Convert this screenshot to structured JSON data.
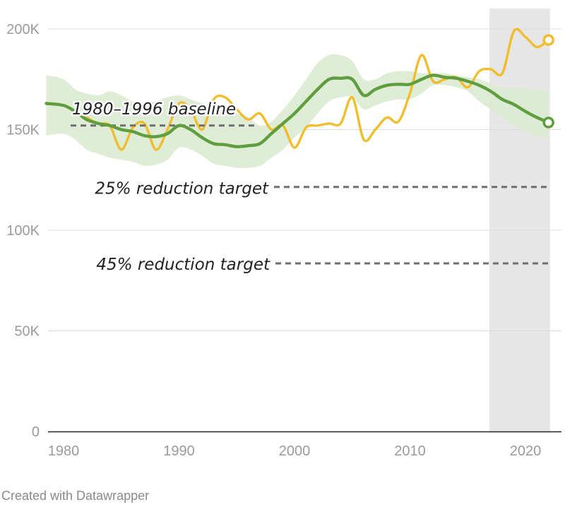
{
  "chart_data": {
    "type": "line",
    "x_ticks": [
      "1980",
      "1990",
      "2000",
      "2010",
      "2020"
    ],
    "y_ticks": [
      "0",
      "50K",
      "100K",
      "150K",
      "200K"
    ],
    "ylim": [
      0,
      200000
    ],
    "xlim": [
      1978.5,
      2022.6
    ],
    "grid": true,
    "highlight_band": {
      "from": 2017,
      "to": 2022,
      "color": "#e6e6e6"
    },
    "series": [
      {
        "color": "#f0bd2e",
        "x": [
          1982,
          1983,
          1984,
          1985,
          1986,
          1987,
          1988,
          1989,
          1990,
          1991,
          1992,
          1993,
          1994,
          1995,
          1996,
          1997,
          1998,
          1999,
          2000,
          2001,
          2002,
          2003,
          2004,
          2005,
          2006,
          2007,
          2008,
          2009,
          2010,
          2011,
          2012,
          2013,
          2014,
          2015,
          2016,
          2017,
          2018,
          2019,
          2020,
          2021,
          2022
        ],
        "values": [
          156000,
          153000,
          152000,
          140000,
          151000,
          153000,
          140000,
          150000,
          163000,
          160000,
          150000,
          165000,
          166000,
          160000,
          155000,
          158000,
          150000,
          152000,
          141000,
          151000,
          152000,
          153000,
          153000,
          166000,
          145000,
          150000,
          156000,
          154000,
          168000,
          187000,
          174000,
          175000,
          176000,
          171000,
          179000,
          180000,
          178000,
          199000,
          196000,
          191000,
          194500
        ]
      },
      {
        "color": "#5f9e3f",
        "x": [
          1978.5,
          1980,
          1981,
          1982,
          1983,
          1984,
          1985,
          1986,
          1987,
          1988,
          1989,
          1990,
          1991,
          1992,
          1993,
          1994,
          1995,
          1996,
          1997,
          1998,
          1999,
          2000,
          2001,
          2002,
          2003,
          2004,
          2005,
          2006,
          2007,
          2008,
          2009,
          2010,
          2011,
          2012,
          2013,
          2014,
          2015,
          2016,
          2017,
          2018,
          2019,
          2020,
          2021,
          2022
        ],
        "values": [
          163000,
          162000,
          159000,
          155000,
          153000,
          152000,
          150000,
          149000,
          147000,
          146500,
          148000,
          152000,
          150000,
          146000,
          143000,
          142500,
          141500,
          142000,
          143000,
          148000,
          153000,
          158000,
          164000,
          170000,
          175000,
          175500,
          175000,
          167000,
          170000,
          172000,
          172500,
          172500,
          175000,
          177000,
          176000,
          175500,
          174000,
          172000,
          169000,
          165000,
          162500,
          159000,
          156000,
          153500
        ],
        "band_upper": [
          177000,
          175000,
          170000,
          168000,
          167000,
          169000,
          167000,
          164000,
          163000,
          164000,
          166000,
          167000,
          165000,
          163000,
          161000,
          160000,
          158000,
          156000,
          152000,
          154000,
          160000,
          167000,
          175000,
          183000,
          187000,
          187000,
          184000,
          175000,
          175000,
          178000,
          179000,
          179000,
          178000,
          178000,
          178000,
          177000,
          176000,
          175000,
          173000,
          171000,
          171000,
          170500,
          170000,
          169000
        ],
        "band_lower": [
          147000,
          148000,
          145000,
          140000,
          138000,
          136000,
          135000,
          134000,
          132000,
          132500,
          135000,
          141000,
          140000,
          137000,
          133000,
          132000,
          131000,
          131000,
          132000,
          136000,
          140000,
          146000,
          151000,
          158000,
          164000,
          166000,
          166000,
          160000,
          162000,
          164000,
          165000,
          165000,
          168000,
          172000,
          172000,
          171000,
          169000,
          164000,
          160000,
          156000,
          152000,
          149000,
          147000,
          145000
        ]
      }
    ],
    "reference_lines": [
      {
        "label": "1980–1996 baseline",
        "value": 152000
      },
      {
        "label": "25% reduction target",
        "value": 121500
      },
      {
        "label": "45% reduction target",
        "value": 83500
      }
    ],
    "colors": {
      "grid": "#dddddd",
      "axis": "#222222",
      "reference": "#6e6e6e",
      "band": "#dcebd2"
    }
  },
  "credit": "Created with Datawrapper"
}
